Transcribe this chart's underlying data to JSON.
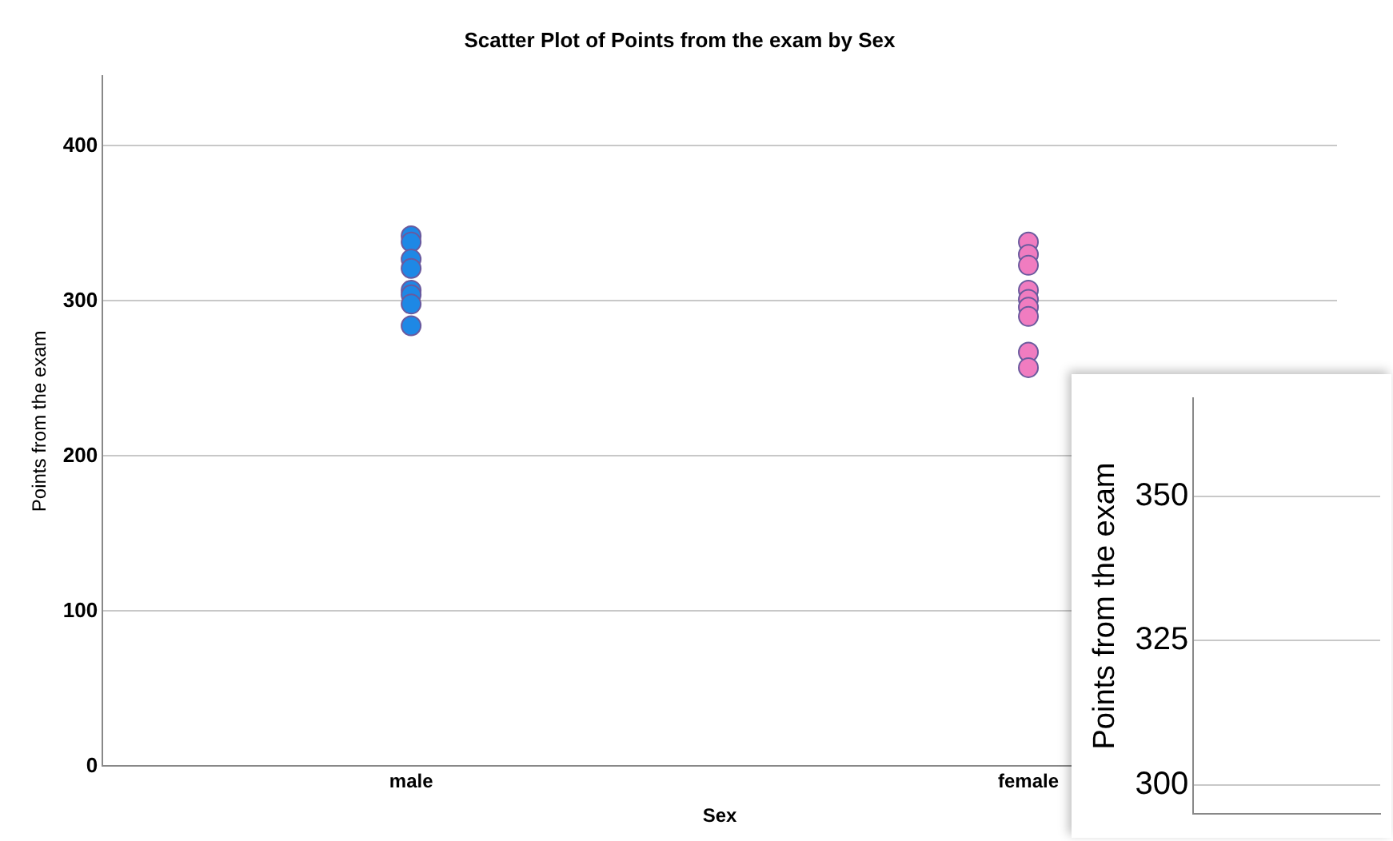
{
  "chart_data": [
    {
      "type": "scatter",
      "title": "Scatter Plot of Points from the exam by Sex",
      "xlabel": "Sex",
      "ylabel": "Points from the exam",
      "categories": [
        "male",
        "female"
      ],
      "series": [
        {
          "color": "#1e88e5",
          "x": [
            "male",
            "male",
            "male",
            "male",
            "male",
            "male",
            "male",
            "male"
          ],
          "values": [
            342,
            338,
            327,
            321,
            307,
            304,
            298,
            284
          ]
        },
        {
          "color": "#f07cc0",
          "x": [
            "female",
            "female",
            "female",
            "female",
            "female",
            "female",
            "female",
            "female",
            "female"
          ],
          "values": [
            338,
            330,
            323,
            307,
            301,
            296,
            290,
            267,
            257
          ]
        }
      ],
      "ylim": [
        0,
        445
      ],
      "yticks": [
        0,
        100,
        200,
        300,
        400
      ],
      "grid": "y",
      "marker": "circle"
    },
    {
      "type": "scatter",
      "ylabel": "Points from the exam",
      "categories": [
        null
      ],
      "values": [
        null
      ],
      "ylim": [
        295,
        367
      ],
      "yticks": [
        300,
        325,
        350
      ],
      "grid": "y",
      "tick_labels": "y"
    }
  ]
}
